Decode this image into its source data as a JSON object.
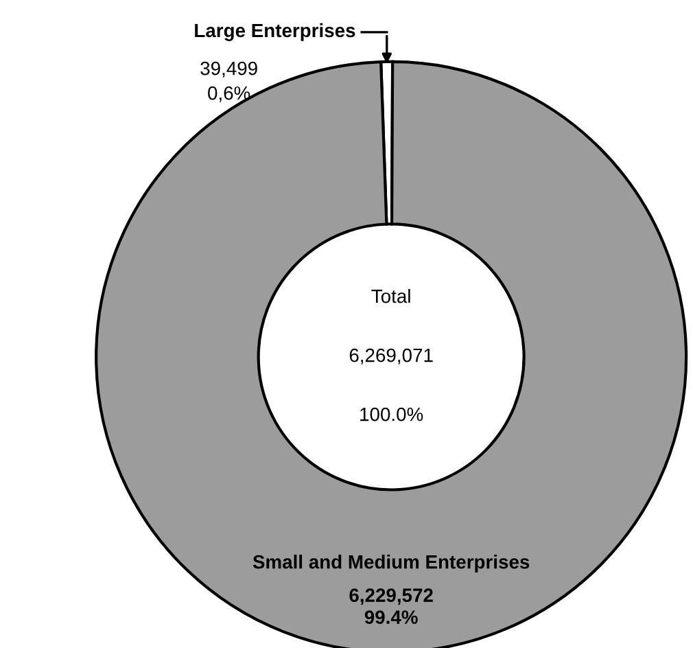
{
  "chart_data": {
    "type": "donut",
    "categories": [
      "Large Enterprises",
      "Small and Medium Enterprises"
    ],
    "values": [
      39499,
      6229572
    ],
    "colors": [
      "#ffffff",
      "#9c9c9c"
    ],
    "value_labels": [
      "39,499\n0,6%",
      "6,229,572\n99.4%"
    ],
    "annotations": [
      "Total",
      "6,269,071",
      "100.0%"
    ]
  }
}
